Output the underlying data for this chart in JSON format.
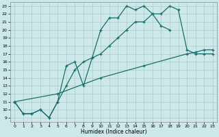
{
  "xlabel": "Humidex (Indice chaleur)",
  "bg_color": "#cce8e8",
  "grid_color": "#aacccc",
  "line_color": "#1a6b6b",
  "xlim": [
    -0.5,
    23.5
  ],
  "ylim": [
    8.5,
    23.5
  ],
  "xticks": [
    0,
    1,
    2,
    3,
    4,
    5,
    6,
    7,
    8,
    9,
    10,
    11,
    12,
    13,
    14,
    15,
    16,
    17,
    18,
    19,
    20,
    21,
    22,
    23
  ],
  "yticks": [
    9,
    10,
    11,
    12,
    13,
    14,
    15,
    16,
    17,
    18,
    19,
    20,
    21,
    22,
    23
  ],
  "line1_x": [
    0,
    1,
    2,
    3,
    4,
    5,
    6,
    7,
    8,
    9,
    10,
    11,
    12,
    13,
    14,
    15,
    16,
    17,
    18
  ],
  "line1_y": [
    11,
    9.5,
    9.5,
    10,
    9,
    11,
    15.5,
    16,
    13,
    16.5,
    20,
    21.5,
    21.5,
    23,
    22.5,
    23,
    22,
    20.5,
    20
  ],
  "line2_x": [
    0,
    1,
    2,
    3,
    4,
    5,
    6,
    7,
    8,
    9,
    10,
    11,
    12,
    13,
    14,
    15,
    16,
    17,
    18,
    19,
    20,
    21,
    22,
    23
  ],
  "line2_y": [
    11,
    9.5,
    9.5,
    10,
    9,
    11,
    13,
    15,
    16,
    16.5,
    17,
    18,
    19,
    20,
    21,
    21,
    22,
    22,
    23,
    22.5,
    17.5,
    17,
    17,
    17
  ],
  "line3_x": [
    0,
    5,
    10,
    15,
    20,
    21,
    22,
    23
  ],
  "line3_y": [
    11,
    12,
    14,
    15.5,
    17,
    17.2,
    17.5,
    17.5
  ]
}
